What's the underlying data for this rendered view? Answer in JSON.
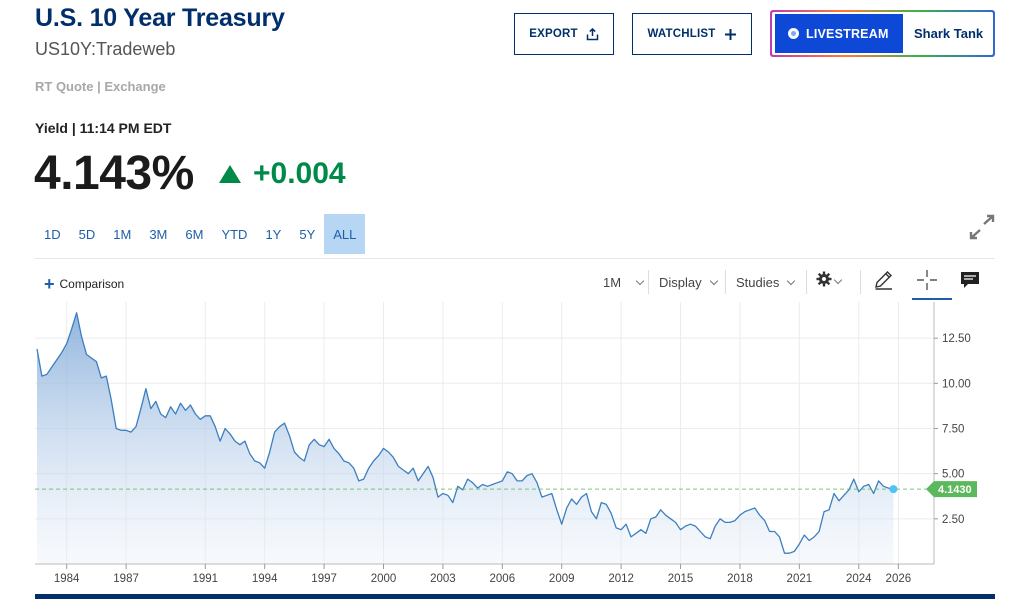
{
  "header": {
    "title": "U.S. 10 Year Treasury",
    "symbol": "US10Y:Tradeweb",
    "quote_source": "RT Quote | Exchange"
  },
  "buttons": {
    "export_label": "EXPORT",
    "watchlist_label": "WATCHLIST",
    "livestream_label": "LIVESTREAM",
    "livestream_show": "Shark Tank"
  },
  "quote": {
    "yield_label": "Yield | 11:14 PM EDT",
    "price": "4.143%",
    "change": "+0.004",
    "change_color": "#008a4a"
  },
  "ranges": [
    "1D",
    "5D",
    "1M",
    "3M",
    "6M",
    "YTD",
    "1Y",
    "5Y",
    "ALL"
  ],
  "active_range": "ALL",
  "toolbar": {
    "comparison_label": "Comparison",
    "interval_label": "1M",
    "display_label": "Display",
    "studies_label": "Studies",
    "icons": [
      "gear-icon",
      "pencil-icon",
      "crosshair-icon",
      "comment-icon"
    ]
  },
  "colors": {
    "brand": "#002f6c",
    "accent": "#1e5ea8",
    "line": "#3c7fbf",
    "up": "#008a4a",
    "last_value_badge": "#5cb85c",
    "live_button": "#0d49d6"
  },
  "chart_data": {
    "type": "area",
    "title": "",
    "xlabel": "",
    "ylabel": "",
    "x_ticks": [
      "1984",
      "1987",
      "1991",
      "1994",
      "1997",
      "2000",
      "2003",
      "2006",
      "2009",
      "2012",
      "2015",
      "2018",
      "2021",
      "2024",
      "2026"
    ],
    "y_ticks": [
      "2.50",
      "5.00",
      "7.50",
      "10.00",
      "12.50"
    ],
    "xlim": [
      1982.4,
      2027.8
    ],
    "ylim": [
      0,
      14.5
    ],
    "grid": true,
    "last_value": 4.143,
    "last_value_label": "4.1430",
    "series": [
      {
        "points": [
          [
            1982.5,
            11.9
          ],
          [
            1982.75,
            10.4
          ],
          [
            1983.0,
            10.5
          ],
          [
            1983.25,
            10.9
          ],
          [
            1983.5,
            11.3
          ],
          [
            1983.75,
            11.7
          ],
          [
            1984.0,
            12.2
          ],
          [
            1984.25,
            13.0
          ],
          [
            1984.5,
            13.9
          ],
          [
            1984.75,
            12.6
          ],
          [
            1985.0,
            11.6
          ],
          [
            1985.25,
            11.4
          ],
          [
            1985.5,
            11.2
          ],
          [
            1985.75,
            10.3
          ],
          [
            1986.0,
            10.4
          ],
          [
            1986.25,
            9.1
          ],
          [
            1986.5,
            7.5
          ],
          [
            1986.75,
            7.4
          ],
          [
            1987.0,
            7.4
          ],
          [
            1987.25,
            7.3
          ],
          [
            1987.5,
            7.6
          ],
          [
            1987.75,
            8.6
          ],
          [
            1988.0,
            9.7
          ],
          [
            1988.25,
            8.6
          ],
          [
            1988.5,
            9.0
          ],
          [
            1988.75,
            8.3
          ],
          [
            1989.0,
            8.1
          ],
          [
            1989.25,
            8.7
          ],
          [
            1989.5,
            8.3
          ],
          [
            1989.75,
            8.9
          ],
          [
            1990.0,
            8.5
          ],
          [
            1990.25,
            8.8
          ],
          [
            1990.5,
            8.3
          ],
          [
            1990.75,
            8.0
          ],
          [
            1991.0,
            8.2
          ],
          [
            1991.25,
            8.2
          ],
          [
            1991.5,
            7.6
          ],
          [
            1991.75,
            6.8
          ],
          [
            1992.0,
            7.5
          ],
          [
            1992.25,
            7.2
          ],
          [
            1992.5,
            6.8
          ],
          [
            1992.75,
            6.6
          ],
          [
            1993.0,
            6.8
          ],
          [
            1993.25,
            6.1
          ],
          [
            1993.5,
            5.7
          ],
          [
            1993.75,
            5.6
          ],
          [
            1994.0,
            5.3
          ],
          [
            1994.25,
            6.2
          ],
          [
            1994.5,
            7.3
          ],
          [
            1994.75,
            7.6
          ],
          [
            1995.0,
            7.8
          ],
          [
            1995.25,
            7.1
          ],
          [
            1995.5,
            6.2
          ],
          [
            1995.75,
            5.9
          ],
          [
            1996.0,
            5.7
          ],
          [
            1996.25,
            6.6
          ],
          [
            1996.5,
            6.9
          ],
          [
            1996.75,
            6.6
          ],
          [
            1997.0,
            6.5
          ],
          [
            1997.25,
            6.9
          ],
          [
            1997.5,
            6.4
          ],
          [
            1997.75,
            6.1
          ],
          [
            1998.0,
            5.7
          ],
          [
            1998.25,
            5.6
          ],
          [
            1998.5,
            5.3
          ],
          [
            1998.75,
            4.6
          ],
          [
            1999.0,
            4.7
          ],
          [
            1999.25,
            5.3
          ],
          [
            1999.5,
            5.7
          ],
          [
            1999.75,
            6.0
          ],
          [
            2000.0,
            6.4
          ],
          [
            2000.25,
            6.2
          ],
          [
            2000.5,
            5.9
          ],
          [
            2000.75,
            5.4
          ],
          [
            2001.0,
            5.2
          ],
          [
            2001.25,
            5.0
          ],
          [
            2001.5,
            5.3
          ],
          [
            2001.75,
            4.6
          ],
          [
            2002.0,
            5.0
          ],
          [
            2002.25,
            5.4
          ],
          [
            2002.5,
            4.8
          ],
          [
            2002.75,
            3.7
          ],
          [
            2003.0,
            3.9
          ],
          [
            2003.25,
            3.8
          ],
          [
            2003.5,
            3.4
          ],
          [
            2003.75,
            4.3
          ],
          [
            2004.0,
            4.1
          ],
          [
            2004.25,
            4.7
          ],
          [
            2004.5,
            4.5
          ],
          [
            2004.75,
            4.2
          ],
          [
            2005.0,
            4.4
          ],
          [
            2005.25,
            4.3
          ],
          [
            2005.5,
            4.4
          ],
          [
            2005.75,
            4.5
          ],
          [
            2006.0,
            4.6
          ],
          [
            2006.25,
            5.1
          ],
          [
            2006.5,
            5.0
          ],
          [
            2006.75,
            4.6
          ],
          [
            2007.0,
            4.6
          ],
          [
            2007.25,
            4.9
          ],
          [
            2007.5,
            5.0
          ],
          [
            2007.75,
            4.5
          ],
          [
            2008.0,
            3.7
          ],
          [
            2008.25,
            3.8
          ],
          [
            2008.5,
            3.9
          ],
          [
            2008.75,
            3.0
          ],
          [
            2009.0,
            2.2
          ],
          [
            2009.25,
            3.1
          ],
          [
            2009.5,
            3.6
          ],
          [
            2009.75,
            3.3
          ],
          [
            2010.0,
            3.7
          ],
          [
            2010.25,
            3.9
          ],
          [
            2010.5,
            2.9
          ],
          [
            2010.75,
            2.5
          ],
          [
            2011.0,
            3.4
          ],
          [
            2011.25,
            3.3
          ],
          [
            2011.5,
            2.8
          ],
          [
            2011.75,
            2.0
          ],
          [
            2012.0,
            1.9
          ],
          [
            2012.25,
            2.2
          ],
          [
            2012.5,
            1.5
          ],
          [
            2012.75,
            1.7
          ],
          [
            2013.0,
            1.9
          ],
          [
            2013.25,
            1.7
          ],
          [
            2013.5,
            2.5
          ],
          [
            2013.75,
            2.6
          ],
          [
            2014.0,
            3.0
          ],
          [
            2014.25,
            2.7
          ],
          [
            2014.5,
            2.5
          ],
          [
            2014.75,
            2.3
          ],
          [
            2015.0,
            1.9
          ],
          [
            2015.25,
            2.1
          ],
          [
            2015.5,
            2.2
          ],
          [
            2015.75,
            2.1
          ],
          [
            2016.0,
            1.8
          ],
          [
            2016.25,
            1.5
          ],
          [
            2016.5,
            1.4
          ],
          [
            2016.75,
            2.1
          ],
          [
            2017.0,
            2.5
          ],
          [
            2017.25,
            2.3
          ],
          [
            2017.5,
            2.3
          ],
          [
            2017.75,
            2.4
          ],
          [
            2018.0,
            2.7
          ],
          [
            2018.25,
            2.9
          ],
          [
            2018.5,
            3.0
          ],
          [
            2018.75,
            3.1
          ],
          [
            2019.0,
            2.7
          ],
          [
            2019.25,
            2.4
          ],
          [
            2019.5,
            1.8
          ],
          [
            2019.75,
            1.8
          ],
          [
            2020.0,
            1.5
          ],
          [
            2020.25,
            0.6
          ],
          [
            2020.5,
            0.6
          ],
          [
            2020.75,
            0.7
          ],
          [
            2021.0,
            1.1
          ],
          [
            2021.25,
            1.6
          ],
          [
            2021.5,
            1.3
          ],
          [
            2021.75,
            1.5
          ],
          [
            2022.0,
            1.8
          ],
          [
            2022.25,
            2.9
          ],
          [
            2022.5,
            3.0
          ],
          [
            2022.75,
            3.9
          ],
          [
            2023.0,
            3.5
          ],
          [
            2023.25,
            3.8
          ],
          [
            2023.5,
            4.1
          ],
          [
            2023.75,
            4.7
          ],
          [
            2024.0,
            4.0
          ],
          [
            2024.25,
            4.3
          ],
          [
            2024.5,
            4.4
          ],
          [
            2024.75,
            3.9
          ],
          [
            2025.0,
            4.6
          ],
          [
            2025.25,
            4.3
          ],
          [
            2025.5,
            4.2
          ],
          [
            2025.75,
            4.143
          ]
        ]
      }
    ]
  }
}
